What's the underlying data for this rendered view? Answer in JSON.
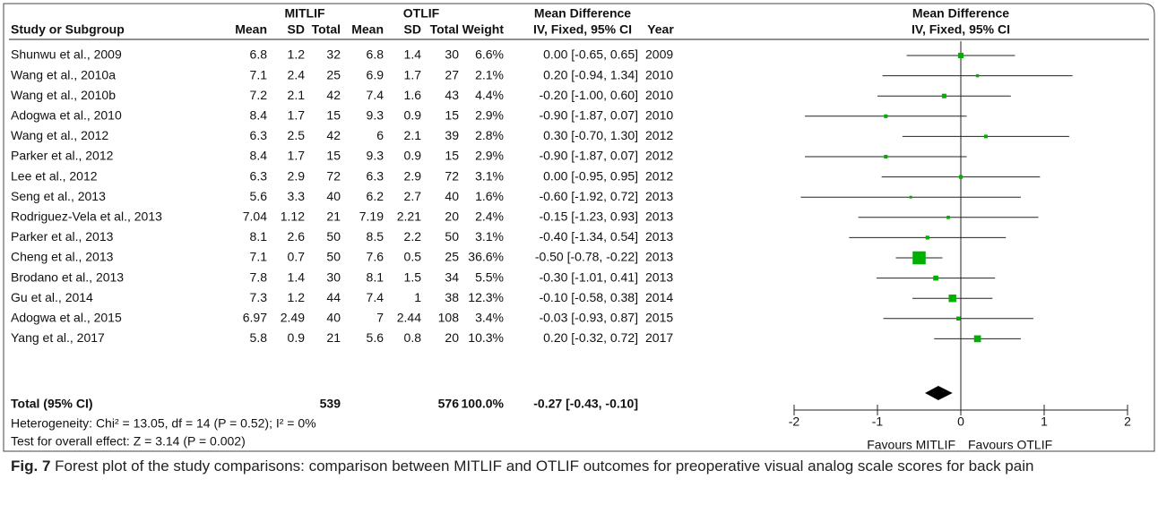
{
  "table": {
    "group_headers": [
      "MITLIF",
      "OTLIF",
      "Mean Difference",
      "Mean Difference"
    ],
    "columns": [
      "Study or Subgroup",
      "Mean",
      "SD",
      "Total",
      "Mean",
      "SD",
      "Total",
      "Weight",
      "IV, Fixed, 95% CI",
      "Year",
      "IV, Fixed, 95% CI"
    ],
    "rows": [
      [
        "Shunwu et al., 2009",
        "6.8",
        "1.2",
        "32",
        "6.8",
        "1.4",
        "30",
        "6.6%",
        "0.00 [-0.65, 0.65]",
        "2009"
      ],
      [
        "Wang et al., 2010a",
        "7.1",
        "2.4",
        "25",
        "6.9",
        "1.7",
        "27",
        "2.1%",
        "0.20 [-0.94, 1.34]",
        "2010"
      ],
      [
        "Wang et al., 2010b",
        "7.2",
        "2.1",
        "42",
        "7.4",
        "1.6",
        "43",
        "4.4%",
        "-0.20 [-1.00, 0.60]",
        "2010"
      ],
      [
        "Adogwa et al., 2010",
        "8.4",
        "1.7",
        "15",
        "9.3",
        "0.9",
        "15",
        "2.9%",
        "-0.90 [-1.87, 0.07]",
        "2010"
      ],
      [
        "Wang et al., 2012",
        "6.3",
        "2.5",
        "42",
        "6",
        "2.1",
        "39",
        "2.8%",
        "0.30 [-0.70, 1.30]",
        "2012"
      ],
      [
        "Parker et al., 2012",
        "8.4",
        "1.7",
        "15",
        "9.3",
        "0.9",
        "15",
        "2.9%",
        "-0.90 [-1.87, 0.07]",
        "2012"
      ],
      [
        "Lee et al., 2012",
        "6.3",
        "2.9",
        "72",
        "6.3",
        "2.9",
        "72",
        "3.1%",
        "0.00 [-0.95, 0.95]",
        "2012"
      ],
      [
        "Seng et al., 2013",
        "5.6",
        "3.3",
        "40",
        "6.2",
        "2.7",
        "40",
        "1.6%",
        "-0.60 [-1.92, 0.72]",
        "2013"
      ],
      [
        "Rodriguez-Vela et al., 2013",
        "7.04",
        "1.12",
        "21",
        "7.19",
        "2.21",
        "20",
        "2.4%",
        "-0.15 [-1.23, 0.93]",
        "2013"
      ],
      [
        "Parker et al., 2013",
        "8.1",
        "2.6",
        "50",
        "8.5",
        "2.2",
        "50",
        "3.1%",
        "-0.40 [-1.34, 0.54]",
        "2013"
      ],
      [
        "Cheng et al., 2013",
        "7.1",
        "0.7",
        "50",
        "7.6",
        "0.5",
        "25",
        "36.6%",
        "-0.50 [-0.78, -0.22]",
        "2013"
      ],
      [
        "Brodano et al., 2013",
        "7.8",
        "1.4",
        "30",
        "8.1",
        "1.5",
        "34",
        "5.5%",
        "-0.30 [-1.01, 0.41]",
        "2013"
      ],
      [
        "Gu et al., 2014",
        "7.3",
        "1.2",
        "44",
        "7.4",
        "1",
        "38",
        "12.3%",
        "-0.10 [-0.58, 0.38]",
        "2014"
      ],
      [
        "Adogwa et al., 2015",
        "6.97",
        "2.49",
        "40",
        "7",
        "2.44",
        "108",
        "3.4%",
        "-0.03 [-0.93, 0.87]",
        "2015"
      ],
      [
        "Yang et al., 2017",
        "5.8",
        "0.9",
        "21",
        "5.6",
        "0.8",
        "20",
        "10.3%",
        "0.20 [-0.32, 0.72]",
        "2017"
      ]
    ],
    "total": {
      "label": "Total (95% CI)",
      "total_1": "539",
      "total_2": "576",
      "weight": "100.0%",
      "ci": "-0.27 [-0.43, -0.10]"
    },
    "heterogeneity": "Heterogeneity: Chi² = 13.05, df = 14 (P = 0.52); I² = 0%",
    "overall_effect": "Test for overall effect: Z = 3.14 (P = 0.002)"
  },
  "chart_data": {
    "type": "forest",
    "values": [
      0.0,
      0.2,
      -0.2,
      -0.9,
      0.3,
      -0.9,
      0.0,
      -0.6,
      -0.15,
      -0.4,
      -0.5,
      -0.3,
      -0.1,
      -0.03,
      0.2
    ],
    "ci_low": [
      -0.65,
      -0.94,
      -1.0,
      -1.87,
      -0.7,
      -1.87,
      -0.95,
      -1.92,
      -1.23,
      -1.34,
      -0.78,
      -1.01,
      -0.58,
      -0.93,
      -0.32
    ],
    "ci_high": [
      0.65,
      1.34,
      0.6,
      0.07,
      1.3,
      0.07,
      0.95,
      0.72,
      0.93,
      0.54,
      -0.22,
      0.41,
      0.38,
      0.87,
      0.72
    ],
    "weights": [
      6.6,
      2.1,
      4.4,
      2.9,
      2.8,
      2.9,
      3.1,
      1.6,
      2.4,
      3.1,
      36.6,
      5.5,
      12.3,
      3.4,
      10.3
    ],
    "total": {
      "value": -0.27,
      "ci_low": -0.43,
      "ci_high": -0.1
    },
    "xlim": [
      -2,
      2
    ],
    "xticks": [
      -2,
      -1,
      0,
      1,
      2
    ],
    "favours_left": "Favours MITLIF",
    "favours_right": "Favours OTLIF",
    "color": "#00b000",
    "total_color": "#000000"
  },
  "caption": {
    "label": "Fig. 7",
    "text": "Forest plot of the study comparisons: comparison between MITLIF and OTLIF outcomes for preoperative visual analog scale scores for back pain"
  }
}
